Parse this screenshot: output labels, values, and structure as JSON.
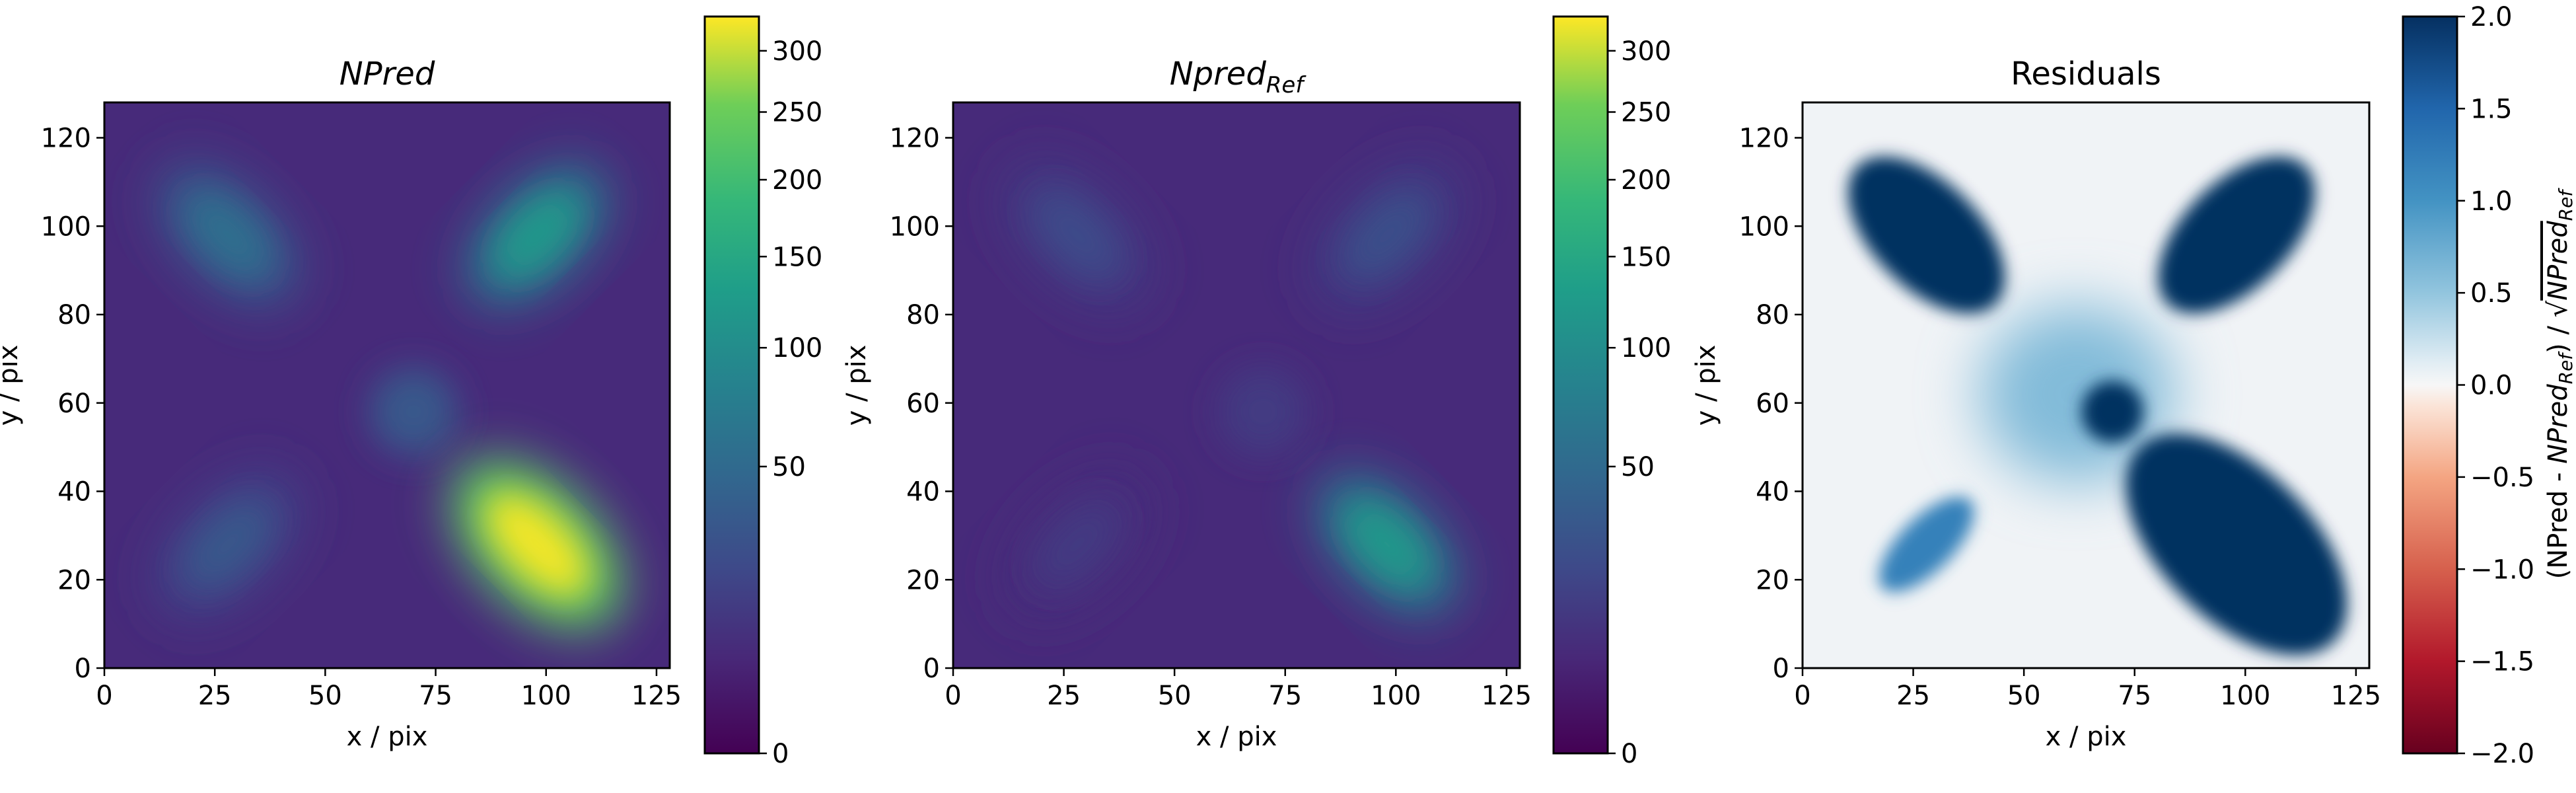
{
  "chart_data": [
    {
      "type": "heatmap",
      "title": "NPred",
      "title_style": "italic",
      "xlabel": "x / pix",
      "ylabel": "y / pix",
      "xlim": [
        0,
        128
      ],
      "ylim": [
        0,
        128
      ],
      "xticks": [
        0,
        25,
        50,
        75,
        100,
        125
      ],
      "yticks": [
        0,
        20,
        40,
        60,
        80,
        100,
        120
      ],
      "colormap": "viridis",
      "color_scale": "sqrt",
      "colorbar": {
        "range": [
          0,
          330
        ],
        "ticks": [
          0,
          50,
          100,
          150,
          200,
          250,
          300
        ],
        "tick_labels": [
          "0",
          "50",
          "100",
          "150",
          "200",
          "250",
          "300"
        ]
      },
      "background": 8,
      "sources": [
        {
          "x": 28,
          "y": 98,
          "peak": 45
        },
        {
          "x": 98,
          "y": 98,
          "peak": 95
        },
        {
          "x": 70,
          "y": 58,
          "peak": 25
        },
        {
          "x": 28,
          "y": 28,
          "peak": 25
        },
        {
          "x": 98,
          "y": 28,
          "peak": 320
        }
      ]
    },
    {
      "type": "heatmap",
      "title": "Npred",
      "title_subscript": "Ref",
      "title_style": "italic",
      "xlabel": "x / pix",
      "ylabel": "y / pix",
      "xlim": [
        0,
        128
      ],
      "ylim": [
        0,
        128
      ],
      "xticks": [
        0,
        25,
        50,
        75,
        100,
        125
      ],
      "yticks": [
        0,
        20,
        40,
        60,
        80,
        100,
        120
      ],
      "colormap": "viridis",
      "color_scale": "sqrt",
      "colorbar": {
        "range": [
          0,
          330
        ],
        "ticks": [
          0,
          50,
          100,
          150,
          200,
          250,
          300
        ],
        "tick_labels": [
          "0",
          "50",
          "100",
          "150",
          "200",
          "250",
          "300"
        ]
      },
      "background": 8,
      "sources": [
        {
          "x": 28,
          "y": 98,
          "peak": 18
        },
        {
          "x": 98,
          "y": 98,
          "peak": 20
        },
        {
          "x": 70,
          "y": 58,
          "peak": 10
        },
        {
          "x": 28,
          "y": 28,
          "peak": 10
        },
        {
          "x": 98,
          "y": 28,
          "peak": 95
        }
      ]
    },
    {
      "type": "heatmap",
      "title": "Residuals",
      "xlabel": "x / pix",
      "ylabel": "y / pix",
      "xlim": [
        0,
        128
      ],
      "ylim": [
        0,
        128
      ],
      "xticks": [
        0,
        25,
        50,
        75,
        100,
        125
      ],
      "yticks": [
        0,
        20,
        40,
        60,
        80,
        100,
        120
      ],
      "colormap": "RdBu",
      "color_scale": "linear",
      "colorbar": {
        "label_main": "(NPred - ",
        "label_ref": "NPred",
        "label_sub": "Ref",
        "label_mid": ") / ",
        "label_sqrt": "√",
        "range": [
          -2.0,
          2.0
        ],
        "ticks": [
          -2.0,
          -1.5,
          -1.0,
          -0.5,
          0.0,
          0.5,
          1.0,
          1.5,
          2.0
        ],
        "tick_labels": [
          "−2.0",
          "−1.5",
          "−1.0",
          "−0.5",
          "0.0",
          "0.5",
          "1.0",
          "1.5",
          "2.0"
        ]
      },
      "background": 0.05,
      "sources": [
        {
          "x": 28,
          "y": 98,
          "peak": 5
        },
        {
          "x": 98,
          "y": 98,
          "peak": 5
        },
        {
          "x": 70,
          "y": 58,
          "peak": 3.5
        },
        {
          "x": 28,
          "y": 28,
          "peak": 1.2
        },
        {
          "x": 98,
          "y": 28,
          "peak": 9
        }
      ],
      "halo": {
        "x": 62,
        "y": 62,
        "peak": 0.6
      }
    }
  ]
}
